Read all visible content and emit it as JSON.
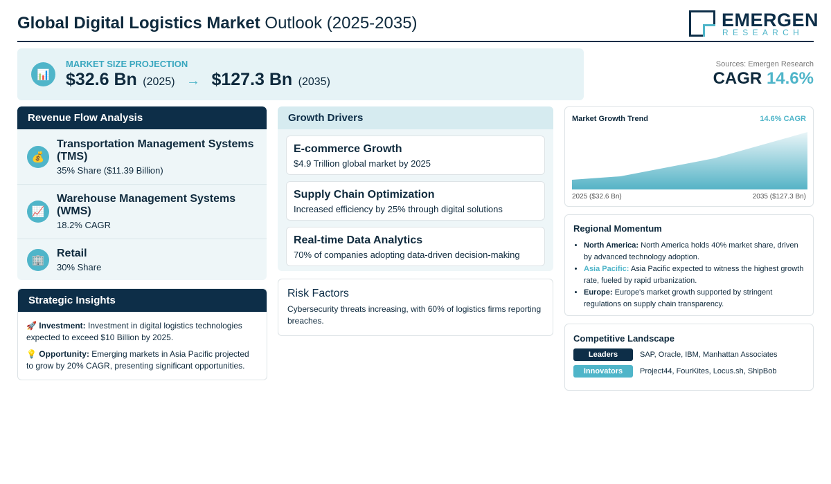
{
  "header": {
    "title_bold": "Global Digital Logistics Market",
    "title_rest": "Outlook (2025-2035)",
    "logo": {
      "name": "EMERGEN",
      "tagline": "RESEARCH"
    }
  },
  "projection": {
    "icon": "📊",
    "label": "MARKET SIZE PROJECTION",
    "start_value": "$32.6 Bn",
    "start_year": "(2025)",
    "arrow": "→",
    "end_value": "$127.3 Bn",
    "end_year": "(2035)"
  },
  "summary": {
    "source": "Sources: Emergen Research",
    "cagr_label": "CAGR",
    "cagr_value": "14.6%"
  },
  "revenue_flow": {
    "title": "Revenue Flow Analysis",
    "items": [
      {
        "icon": "💰",
        "name": "Transportation Management Systems (TMS)",
        "detail": "35% Share ($11.39 Billion)"
      },
      {
        "icon": "📈",
        "name": "Warehouse Management Systems (WMS)",
        "detail": "18.2% CAGR"
      },
      {
        "icon": "🏢",
        "name": "Retail",
        "detail": "30% Share"
      }
    ]
  },
  "strategic_insights": {
    "title": "Strategic Insights",
    "items": [
      {
        "icon": "🚀",
        "label": "Investment:",
        "text": "Investment in digital logistics technologies expected to exceed $10 Billion by 2025."
      },
      {
        "icon": "💡",
        "label": "Opportunity:",
        "text": "Emerging markets in Asia Pacific projected to grow by 20% CAGR, presenting significant opportunities."
      }
    ]
  },
  "growth_drivers": {
    "title": "Growth Drivers",
    "items": [
      {
        "name": "E-commerce Growth",
        "detail": "$4.9 Trillion global market by 2025"
      },
      {
        "name": "Supply Chain Optimization",
        "detail": "Increased efficiency by 25% through digital solutions"
      },
      {
        "name": "Real-time Data Analytics",
        "detail": "70% of companies adopting data-driven decision-making"
      }
    ]
  },
  "risk_factors": {
    "title": "Risk Factors",
    "text": "Cybersecurity threats increasing, with 60% of logistics firms reporting breaches."
  },
  "market_trend": {
    "title": "Market Growth Trend",
    "badge": "14.6% CAGR",
    "start_label": "2025 ($32.6 Bn)",
    "end_label": "2035 ($127.3 Bn)"
  },
  "regional_momentum": {
    "title": "Regional Momentum",
    "items": [
      {
        "region": "North America:",
        "text": "North America holds 40% market share, driven by advanced technology adoption."
      },
      {
        "region": "Asia Pacific:",
        "text": "Asia Pacific expected to witness the highest growth rate, fueled by rapid urbanization."
      },
      {
        "region": "Europe:",
        "text": "Europe's market growth supported by stringent regulations on supply chain transparency."
      }
    ]
  },
  "competitive_landscape": {
    "title": "Competitive Landscape",
    "groups": [
      {
        "label": "Leaders",
        "members": "SAP, Oracle, IBM, Manhattan Associates"
      },
      {
        "label": "Innovators",
        "members": "Project44, FourKites, Locus.sh, ShipBob"
      }
    ]
  }
}
